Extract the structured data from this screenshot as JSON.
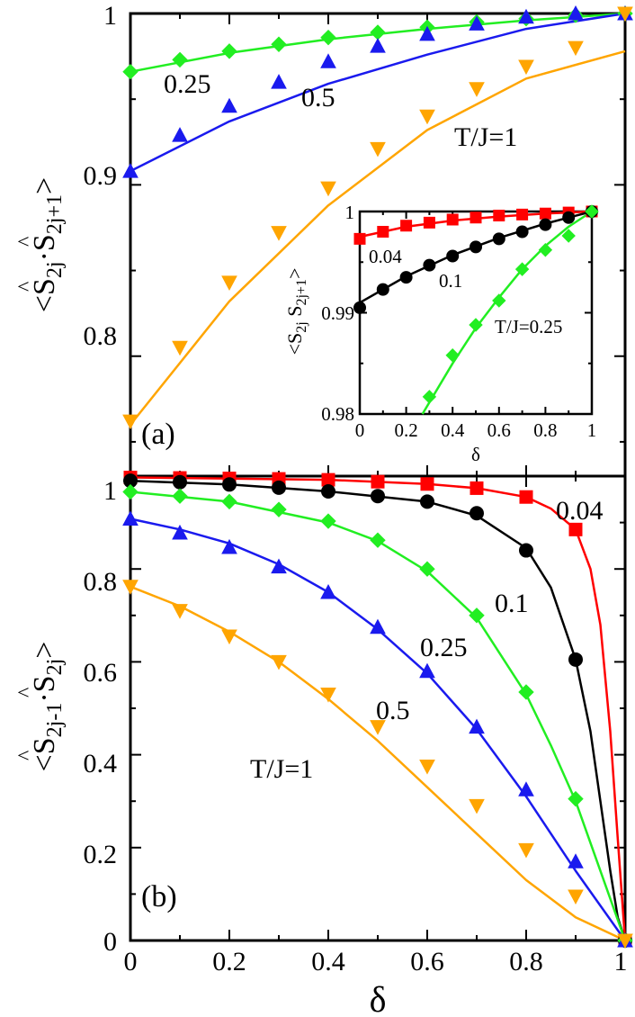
{
  "colors": {
    "T=0.04": "#ff0000",
    "T=0.1": "#000000",
    "T=0.25": "#22ee22",
    "T=0.5": "#1a1aee",
    "T=1": "#ffa500"
  },
  "chart_data": [
    {
      "panel": "(a)",
      "type": "scatter",
      "ylabel": "⟨Ŝ2j·Ŝ2j+1⟩",
      "xlim": [
        0,
        1
      ],
      "ylim": [
        0.73,
        1.0
      ],
      "yticks": [
        "0.8",
        "0.9",
        "1"
      ],
      "xticks": [],
      "annotations": [
        "0.25",
        "0.5",
        "T/J=1"
      ],
      "series": [
        {
          "key": "T=0.25",
          "marker": "diamond",
          "points": [
            [
              0,
              0.966
            ],
            [
              0.1,
              0.973
            ],
            [
              0.2,
              0.978
            ],
            [
              0.3,
              0.982
            ],
            [
              0.4,
              0.986
            ],
            [
              0.5,
              0.989
            ],
            [
              0.6,
              0.992
            ],
            [
              0.7,
              0.995
            ],
            [
              0.8,
              0.997
            ],
            [
              0.9,
              0.999
            ],
            [
              1.0,
              1.0
            ]
          ],
          "curve": [
            [
              0,
              0.966
            ],
            [
              0.2,
              0.977
            ],
            [
              0.4,
              0.985
            ],
            [
              0.6,
              0.991
            ],
            [
              0.8,
              0.996
            ],
            [
              1.0,
              1.0
            ]
          ]
        },
        {
          "key": "T=0.5",
          "marker": "triangle-up",
          "points": [
            [
              0,
              0.908
            ],
            [
              0.1,
              0.929
            ],
            [
              0.2,
              0.946
            ],
            [
              0.3,
              0.96
            ],
            [
              0.4,
              0.972
            ],
            [
              0.5,
              0.981
            ],
            [
              0.6,
              0.988
            ],
            [
              0.7,
              0.994
            ],
            [
              0.8,
              0.998
            ],
            [
              0.9,
              1.0
            ],
            [
              1.0,
              1.0
            ]
          ],
          "curve": [
            [
              0,
              0.908
            ],
            [
              0.2,
              0.937
            ],
            [
              0.4,
              0.959
            ],
            [
              0.6,
              0.976
            ],
            [
              0.8,
              0.991
            ],
            [
              1.0,
              1.0
            ]
          ]
        },
        {
          "key": "T=1",
          "marker": "triangle-down",
          "points": [
            [
              0,
              0.762
            ],
            [
              0.1,
              0.805
            ],
            [
              0.2,
              0.843
            ],
            [
              0.3,
              0.872
            ],
            [
              0.4,
              0.898
            ],
            [
              0.5,
              0.921
            ],
            [
              0.6,
              0.94
            ],
            [
              0.7,
              0.956
            ],
            [
              0.8,
              0.969
            ],
            [
              0.9,
              0.98
            ],
            [
              1.0,
              1.0
            ]
          ],
          "curve": [
            [
              0,
              0.76
            ],
            [
              0.2,
              0.832
            ],
            [
              0.4,
              0.888
            ],
            [
              0.6,
              0.932
            ],
            [
              0.8,
              0.962
            ],
            [
              1.0,
              0.978
            ]
          ]
        }
      ]
    },
    {
      "panel": "inset",
      "type": "scatter",
      "ylabel": "⟨S2j S2j+1⟩",
      "xlabel": "δ",
      "xlim": [
        0,
        1
      ],
      "ylim": [
        0.98,
        1.0
      ],
      "xticks": [
        "0",
        "0.2",
        "0.4",
        "0.6",
        "0.8",
        "1"
      ],
      "yticks": [
        "0.98",
        "0.99",
        "1"
      ],
      "annotations": [
        "0.04",
        "0.1",
        "T/J=0.25"
      ],
      "series": [
        {
          "key": "T=0.04",
          "marker": "square",
          "points": [
            [
              0,
              0.9973
            ],
            [
              0.1,
              0.998
            ],
            [
              0.2,
              0.9986
            ],
            [
              0.3,
              0.9989
            ],
            [
              0.4,
              0.9992
            ],
            [
              0.5,
              0.9994
            ],
            [
              0.6,
              0.9996
            ],
            [
              0.7,
              0.9997
            ],
            [
              0.8,
              0.9998
            ],
            [
              0.9,
              0.9999
            ],
            [
              1.0,
              1.0
            ]
          ],
          "curve": [
            [
              0,
              0.9975
            ],
            [
              0.2,
              0.9985
            ],
            [
              0.4,
              0.9991
            ],
            [
              0.6,
              0.9995
            ],
            [
              0.8,
              0.9998
            ],
            [
              1.0,
              1.0
            ]
          ]
        },
        {
          "key": "T=0.1",
          "marker": "circle",
          "points": [
            [
              0,
              0.9905
            ],
            [
              0.1,
              0.9923
            ],
            [
              0.2,
              0.9935
            ],
            [
              0.3,
              0.9947
            ],
            [
              0.4,
              0.9956
            ],
            [
              0.5,
              0.9965
            ],
            [
              0.6,
              0.9973
            ],
            [
              0.7,
              0.998
            ],
            [
              0.8,
              0.9987
            ],
            [
              0.9,
              0.9994
            ],
            [
              1.0,
              1.0
            ]
          ],
          "curve": [
            [
              0,
              0.991
            ],
            [
              0.2,
              0.9936
            ],
            [
              0.4,
              0.9957
            ],
            [
              0.6,
              0.9974
            ],
            [
              0.8,
              0.9988
            ],
            [
              1.0,
              1.0
            ]
          ]
        },
        {
          "key": "T=0.25",
          "marker": "diamond",
          "points": [
            [
              0.3,
              0.9817
            ],
            [
              0.4,
              0.9858
            ],
            [
              0.5,
              0.9888
            ],
            [
              0.6,
              0.9912
            ],
            [
              0.7,
              0.9943
            ],
            [
              0.8,
              0.9962
            ],
            [
              0.9,
              0.9976
            ],
            [
              1.0,
              1.0
            ]
          ],
          "curve": [
            [
              0.27,
              0.98
            ],
            [
              0.4,
              0.985
            ],
            [
              0.5,
              0.9885
            ],
            [
              0.6,
              0.9915
            ],
            [
              0.7,
              0.9943
            ],
            [
              0.8,
              0.9966
            ],
            [
              0.9,
              0.9985
            ],
            [
              1.0,
              1.0
            ]
          ]
        }
      ]
    },
    {
      "panel": "(b)",
      "type": "scatter",
      "ylabel": "⟨Ŝ2j-1·Ŝ2j⟩",
      "xlabel": "δ",
      "xlim": [
        0,
        1
      ],
      "ylim": [
        0,
        1
      ],
      "xticks": [
        "0",
        "0.2",
        "0.4",
        "0.6",
        "0.8",
        "1"
      ],
      "yticks": [
        "0",
        "0.2",
        "0.4",
        "0.6",
        "0.8",
        "1"
      ],
      "annotations": [
        "0.04",
        "0.1",
        "0.25",
        "0.5",
        "T/J=1"
      ],
      "series": [
        {
          "key": "T=0.04",
          "marker": "square",
          "points": [
            [
              0,
              0.997
            ],
            [
              0.1,
              0.996
            ],
            [
              0.2,
              0.995
            ],
            [
              0.3,
              0.994
            ],
            [
              0.4,
              0.992
            ],
            [
              0.5,
              0.988
            ],
            [
              0.6,
              0.983
            ],
            [
              0.7,
              0.974
            ],
            [
              0.8,
              0.955
            ],
            [
              0.9,
              0.885
            ],
            [
              1.0,
              0.0
            ]
          ],
          "curve": [
            [
              0,
              0.997
            ],
            [
              0.4,
              0.992
            ],
            [
              0.6,
              0.983
            ],
            [
              0.7,
              0.974
            ],
            [
              0.8,
              0.955
            ],
            [
              0.85,
              0.93
            ],
            [
              0.9,
              0.885
            ],
            [
              0.93,
              0.8
            ],
            [
              0.95,
              0.68
            ],
            [
              0.97,
              0.45
            ],
            [
              0.985,
              0.22
            ],
            [
              1.0,
              0.0
            ]
          ]
        },
        {
          "key": "T=0.1",
          "marker": "circle",
          "points": [
            [
              0,
              0.99
            ],
            [
              0.1,
              0.987
            ],
            [
              0.2,
              0.982
            ],
            [
              0.3,
              0.975
            ],
            [
              0.4,
              0.967
            ],
            [
              0.5,
              0.957
            ],
            [
              0.6,
              0.945
            ],
            [
              0.7,
              0.92
            ],
            [
              0.8,
              0.84
            ],
            [
              0.9,
              0.605
            ],
            [
              1.0,
              0.0
            ]
          ],
          "curve": [
            [
              0,
              0.99
            ],
            [
              0.2,
              0.982
            ],
            [
              0.4,
              0.967
            ],
            [
              0.6,
              0.945
            ],
            [
              0.7,
              0.915
            ],
            [
              0.8,
              0.845
            ],
            [
              0.85,
              0.76
            ],
            [
              0.9,
              0.605
            ],
            [
              0.93,
              0.45
            ],
            [
              0.95,
              0.3
            ],
            [
              0.97,
              0.15
            ],
            [
              0.985,
              0.05
            ],
            [
              1.0,
              0.0
            ]
          ]
        },
        {
          "key": "T=0.25",
          "marker": "diamond",
          "points": [
            [
              0,
              0.966
            ],
            [
              0.1,
              0.957
            ],
            [
              0.2,
              0.945
            ],
            [
              0.3,
              0.928
            ],
            [
              0.4,
              0.903
            ],
            [
              0.5,
              0.862
            ],
            [
              0.6,
              0.8
            ],
            [
              0.7,
              0.7
            ],
            [
              0.8,
              0.535
            ],
            [
              0.9,
              0.305
            ],
            [
              1.0,
              0.0
            ]
          ],
          "curve": [
            [
              0,
              0.966
            ],
            [
              0.2,
              0.945
            ],
            [
              0.4,
              0.9
            ],
            [
              0.5,
              0.86
            ],
            [
              0.6,
              0.795
            ],
            [
              0.7,
              0.695
            ],
            [
              0.8,
              0.53
            ],
            [
              0.85,
              0.42
            ],
            [
              0.9,
              0.3
            ],
            [
              0.95,
              0.15
            ],
            [
              1.0,
              0.0
            ]
          ]
        },
        {
          "key": "T=0.5",
          "marker": "triangle-up",
          "points": [
            [
              0,
              0.908
            ],
            [
              0.1,
              0.878
            ],
            [
              0.2,
              0.847
            ],
            [
              0.3,
              0.805
            ],
            [
              0.4,
              0.75
            ],
            [
              0.5,
              0.675
            ],
            [
              0.6,
              0.58
            ],
            [
              0.7,
              0.46
            ],
            [
              0.8,
              0.325
            ],
            [
              0.9,
              0.17
            ],
            [
              1.0,
              0.0
            ]
          ],
          "curve": [
            [
              0,
              0.908
            ],
            [
              0.1,
              0.885
            ],
            [
              0.2,
              0.855
            ],
            [
              0.3,
              0.81
            ],
            [
              0.4,
              0.75
            ],
            [
              0.5,
              0.67
            ],
            [
              0.6,
              0.575
            ],
            [
              0.7,
              0.455
            ],
            [
              0.8,
              0.31
            ],
            [
              0.9,
              0.15
            ],
            [
              1.0,
              0.0
            ]
          ]
        },
        {
          "key": "T=1",
          "marker": "triangle-down",
          "points": [
            [
              0,
              0.762
            ],
            [
              0.1,
              0.71
            ],
            [
              0.2,
              0.655
            ],
            [
              0.3,
              0.6
            ],
            [
              0.4,
              0.53
            ],
            [
              0.5,
              0.46
            ],
            [
              0.6,
              0.375
            ],
            [
              0.7,
              0.29
            ],
            [
              0.8,
              0.195
            ],
            [
              0.9,
              0.095
            ],
            [
              1.0,
              0.0
            ]
          ],
          "curve": [
            [
              0,
              0.762
            ],
            [
              0.1,
              0.72
            ],
            [
              0.2,
              0.665
            ],
            [
              0.3,
              0.6
            ],
            [
              0.4,
              0.52
            ],
            [
              0.5,
              0.43
            ],
            [
              0.6,
              0.33
            ],
            [
              0.7,
              0.23
            ],
            [
              0.8,
              0.13
            ],
            [
              0.9,
              0.05
            ],
            [
              1.0,
              0.0
            ]
          ]
        }
      ]
    }
  ],
  "labels": {
    "panel_a": "(a)",
    "panel_b": "(b)",
    "a_ann_025": "0.25",
    "a_ann_05": "0.5",
    "a_ann_T1": "T/J=1",
    "inset_ann_004": "0.04",
    "inset_ann_01": "0.1",
    "inset_ann_T025": "T/J=0.25",
    "b_ann_004": "0.04",
    "b_ann_01": "0.1",
    "b_ann_025": "0.25",
    "b_ann_05": "0.5",
    "b_ann_T1": "T/J=1",
    "a_ytick_08": "0.8",
    "a_ytick_09": "0.9",
    "a_ytick_1": "1",
    "inset_ytick_098": "0.98",
    "inset_ytick_099": "0.99",
    "inset_ytick_1": "1",
    "inset_xtick_0": "0",
    "inset_xtick_02": "0.2",
    "inset_xtick_04": "0.4",
    "inset_xtick_06": "0.6",
    "inset_xtick_08": "0.8",
    "inset_xtick_1": "1",
    "inset_xlabel": "δ",
    "b_ytick_0": "0",
    "b_ytick_02": "0.2",
    "b_ytick_04": "0.4",
    "b_ytick_06": "0.6",
    "b_ytick_08": "0.8",
    "b_ytick_1": "1",
    "b_xtick_0": "0",
    "b_xtick_02": "0.2",
    "b_xtick_04": "0.4",
    "b_xtick_06": "0.6",
    "b_xtick_08": "0.8",
    "b_xtick_1": "1",
    "xlabel": "δ",
    "a_ylabel_open": "<",
    "a_ylabel_S1": "S",
    "a_ylabel_sub1": "2j",
    "a_ylabel_dot": "·",
    "a_ylabel_S2": "S",
    "a_ylabel_sub2": "2j+1",
    "a_ylabel_close": ">",
    "b_ylabel_open": "<",
    "b_ylabel_S1": "S",
    "b_ylabel_sub1": "2j-1",
    "b_ylabel_dot": "·",
    "b_ylabel_S2": "S",
    "b_ylabel_sub2": "2j",
    "b_ylabel_close": ">",
    "inset_ylabel_open": "<",
    "inset_ylabel_S1": "S",
    "inset_ylabel_sub1": "2j",
    "inset_ylabel_S2": "S",
    "inset_ylabel_sub2": "2j+1",
    "inset_ylabel_close": ">",
    "hat": "^"
  }
}
